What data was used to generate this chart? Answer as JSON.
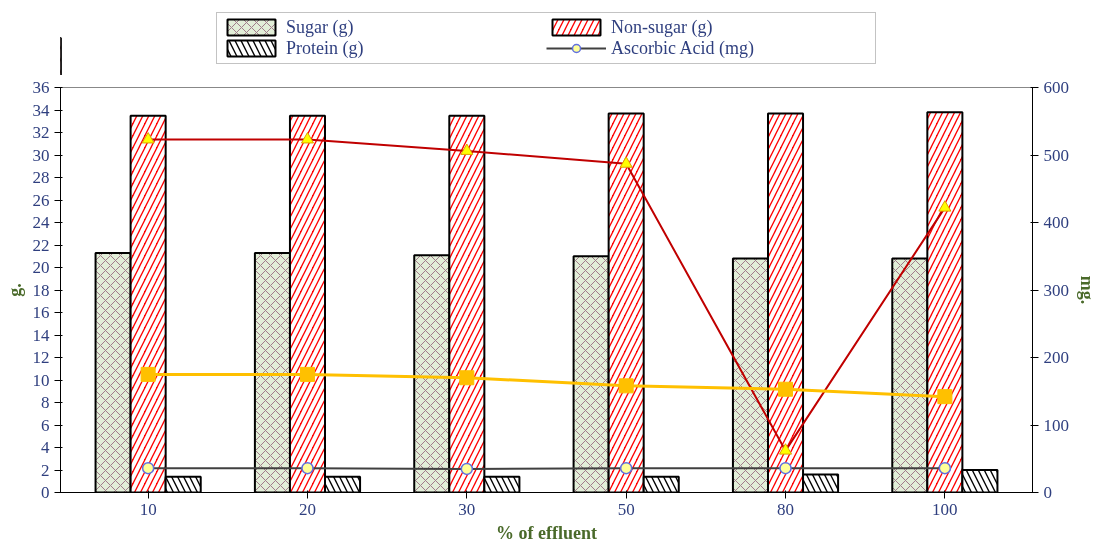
{
  "chart_data": {
    "type": "bar",
    "xlabel": "% of effluent",
    "ylabel": "g.",
    "y2label": "mg.",
    "categories": [
      "10",
      "20",
      "30",
      "50",
      "80",
      "100"
    ],
    "series": [
      {
        "name": "Sugar (g)",
        "color": "#e2eed8",
        "values": [
          21.3,
          21.3,
          21.1,
          21.0,
          20.8,
          20.8
        ]
      },
      {
        "name": "Non-sugar (g)",
        "color": "#ff0000",
        "values": [
          33.5,
          33.5,
          33.5,
          33.7,
          33.7,
          33.8
        ]
      },
      {
        "name": "Protein (g)",
        "color": "#000000",
        "values": [
          1.4,
          1.4,
          1.4,
          1.4,
          1.6,
          2.0
        ]
      },
      {
        "name": "Ascorbic Acid (mg)",
        "type": "line",
        "axis": "y2",
        "marker": "circle",
        "color": "#404040",
        "values": [
          36,
          36,
          35,
          36,
          36,
          36
        ]
      },
      {
        "type": "line",
        "axis": "y2",
        "marker": "triangle",
        "color": "#c00000",
        "values": [
          523,
          523,
          506,
          487,
          62,
          422
        ]
      },
      {
        "type": "line",
        "axis": "y2",
        "marker": "square",
        "color": "#ffc000",
        "values": [
          175,
          175,
          170,
          158,
          153,
          142
        ]
      }
    ],
    "ylim": [
      0,
      36
    ],
    "yticks": [
      0,
      2,
      4,
      6,
      8,
      10,
      12,
      14,
      16,
      18,
      20,
      22,
      24,
      26,
      28,
      30,
      32,
      34,
      36
    ],
    "y2lim": [
      0,
      600
    ],
    "y2ticks": [
      0,
      100,
      200,
      300,
      400,
      500,
      600
    ],
    "grid": false,
    "legend": "top"
  }
}
